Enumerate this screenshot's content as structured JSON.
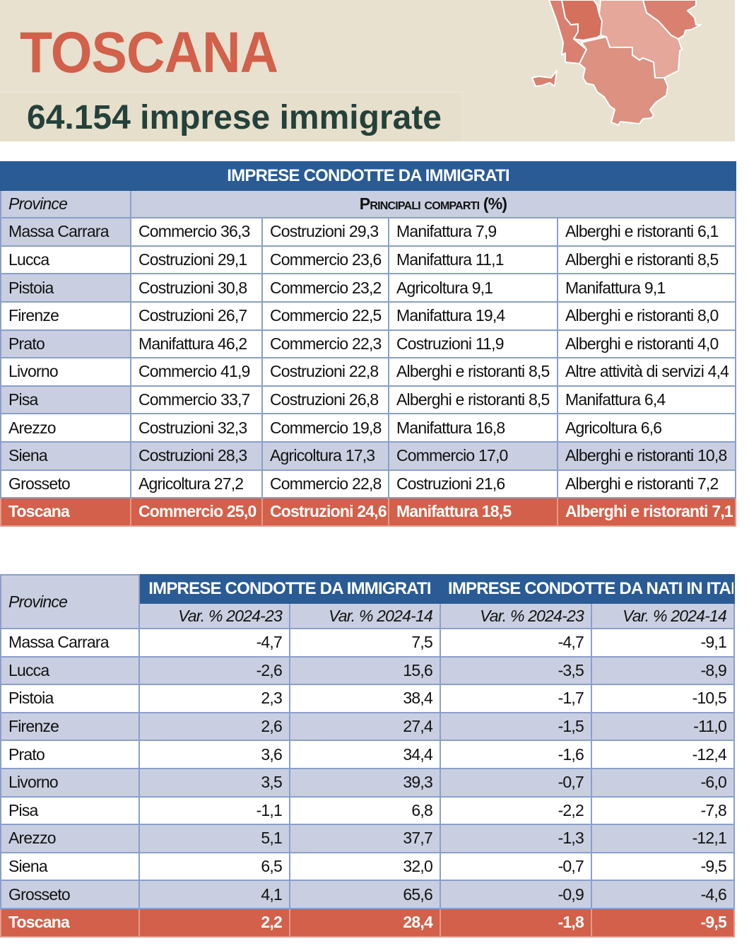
{
  "header": {
    "title": "TOSCANA",
    "subtitle": "64.154 imprese immigrate"
  },
  "colors": {
    "accent": "#d2604a",
    "blue": "#2a5b94",
    "lavender": "#c9cfe0"
  },
  "table1": {
    "title": "IMPRESE CONDOTTE DA IMMIGRATI",
    "province_label": "Province",
    "comparti_label": "Principali comparti (%)",
    "rows": [
      {
        "province": "Massa Carrara",
        "c": [
          "Commercio 36,3",
          "Costruzioni 29,3",
          "Manifattura 7,9",
          "Alberghi e ristoranti 6,1"
        ]
      },
      {
        "province": "Lucca",
        "c": [
          "Costruzioni 29,1",
          "Commercio 23,6",
          "Manifattura 11,1",
          "Alberghi e ristoranti 8,5"
        ]
      },
      {
        "province": "Pistoia",
        "c": [
          "Costruzioni 30,8",
          "Commercio 23,2",
          "Agricoltura 9,1",
          "Manifattura 9,1"
        ]
      },
      {
        "province": "Firenze",
        "c": [
          "Costruzioni 26,7",
          "Commercio 22,5",
          "Manifattura 19,4",
          "Alberghi e ristoranti 8,0"
        ]
      },
      {
        "province": "Prato",
        "c": [
          "Manifattura 46,2",
          "Commercio 22,3",
          "Costruzioni 11,9",
          "Alberghi e ristoranti 4,0"
        ]
      },
      {
        "province": "Livorno",
        "c": [
          "Commercio 41,9",
          "Costruzioni 22,8",
          "Alberghi e ristoranti 8,5",
          "Altre attività di servizi 4,4"
        ]
      },
      {
        "province": "Pisa",
        "c": [
          "Commercio 33,7",
          "Costruzioni 26,8",
          "Alberghi e ristoranti 8,5",
          "Manifattura 6,4"
        ]
      },
      {
        "province": "Arezzo",
        "c": [
          "Costruzioni 32,3",
          "Commercio 19,8",
          "Manifattura 16,8",
          "Agricoltura 6,6"
        ]
      },
      {
        "province": "Siena",
        "c": [
          "Costruzioni 28,3",
          "Agricoltura 17,3",
          "Commercio 17,0",
          "Alberghi e ristoranti 10,8"
        ]
      },
      {
        "province": "Grosseto",
        "c": [
          "Agricoltura 27,2",
          "Commercio 22,8",
          "Costruzioni 21,6",
          "Alberghi e ristoranti 7,2"
        ]
      },
      {
        "province": "Toscana",
        "c": [
          "Commercio 25,0",
          "Costruzioni 24,6",
          "Manifattura 18,5",
          "Alberghi e ristoranti 7,1"
        ]
      }
    ]
  },
  "table2": {
    "province_label": "Province",
    "group1": "IMPRESE CONDOTTE DA IMMIGRATI",
    "group2": "IMPRESE CONDOTTE DA NATI IN ITALIA",
    "cols": [
      "Var. % 2024-23",
      "Var. % 2024-14",
      "Var. % 2024-23",
      "Var. % 2024-14"
    ],
    "rows": [
      {
        "province": "Massa Carrara",
        "v": [
          "-4,7",
          "7,5",
          "-4,7",
          "-9,1"
        ]
      },
      {
        "province": "Lucca",
        "v": [
          "-2,6",
          "15,6",
          "-3,5",
          "-8,9"
        ]
      },
      {
        "province": "Pistoia",
        "v": [
          "2,3",
          "38,4",
          "-1,7",
          "-10,5"
        ]
      },
      {
        "province": "Firenze",
        "v": [
          "2,6",
          "27,4",
          "-1,5",
          "-11,0"
        ]
      },
      {
        "province": "Prato",
        "v": [
          "3,6",
          "34,4",
          "-1,6",
          "-12,4"
        ]
      },
      {
        "province": "Livorno",
        "v": [
          "3,5",
          "39,3",
          "-0,7",
          "-6,0"
        ]
      },
      {
        "province": "Pisa",
        "v": [
          "-1,1",
          "6,8",
          "-2,2",
          "-7,8"
        ]
      },
      {
        "province": "Arezzo",
        "v": [
          "5,1",
          "37,7",
          "-1,3",
          "-12,1"
        ]
      },
      {
        "province": "Siena",
        "v": [
          "6,5",
          "32,0",
          "-0,7",
          "-9,5"
        ]
      },
      {
        "province": "Grosseto",
        "v": [
          "4,1",
          "65,6",
          "-0,9",
          "-4,6"
        ]
      },
      {
        "province": "Toscana",
        "v": [
          "2,2",
          "28,4",
          "-1,8",
          "-9,5"
        ]
      }
    ]
  }
}
